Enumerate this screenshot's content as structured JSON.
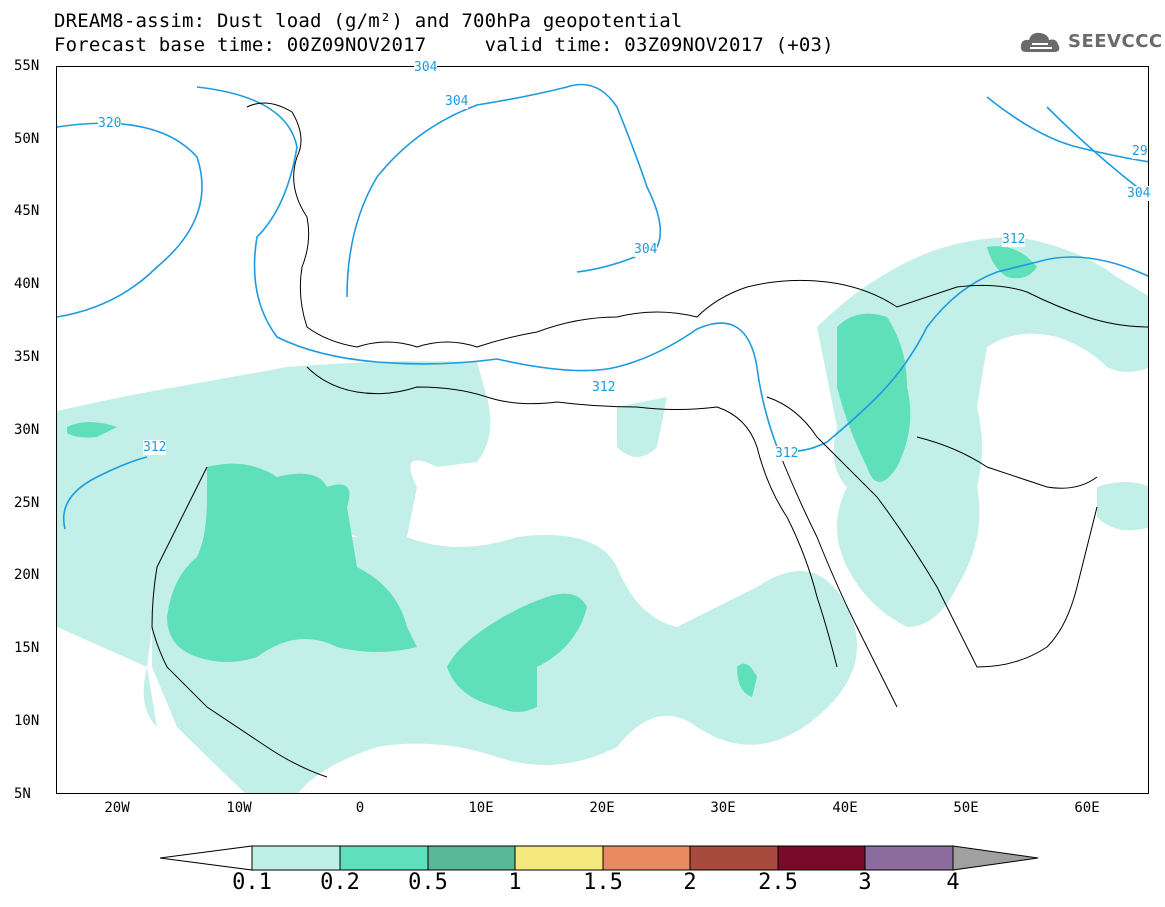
{
  "header": {
    "title_line1": "DREAM8-assim: Dust load (g/m²) and 700hPa geopotential",
    "title_line2": "Forecast base time: 00Z09NOV2017     valid time: 03Z09NOV2017 (+03)",
    "logo_text": "SEEVCCC"
  },
  "axes": {
    "lat_labels": [
      "55N",
      "50N",
      "45N",
      "40N",
      "35N",
      "30N",
      "25N",
      "20N",
      "15N",
      "10N",
      "5N"
    ],
    "lon_labels": [
      "20W",
      "10W",
      "0",
      "10E",
      "20E",
      "30E",
      "40E",
      "50E",
      "60E"
    ]
  },
  "contours": {
    "labels": [
      "304",
      "304",
      "304",
      "320",
      "312",
      "312",
      "312",
      "312",
      "29",
      "304"
    ]
  },
  "colorbar": {
    "levels": [
      "0.1",
      "0.2",
      "0.5",
      "1",
      "1.5",
      "2",
      "2.5",
      "3",
      "4"
    ],
    "colors": [
      "#bff0e6",
      "#5ee0bc",
      "#57b998",
      "#f5e87c",
      "#e88a62",
      "#a84a3e",
      "#7a0a2a",
      "#8c6c9e",
      "#a0a0a0"
    ]
  },
  "dust_colors": {
    "light": "#c2f0e8",
    "medium": "#5fe0b8",
    "dark": "#4ab79a"
  },
  "contour_color": "#1d9be0"
}
